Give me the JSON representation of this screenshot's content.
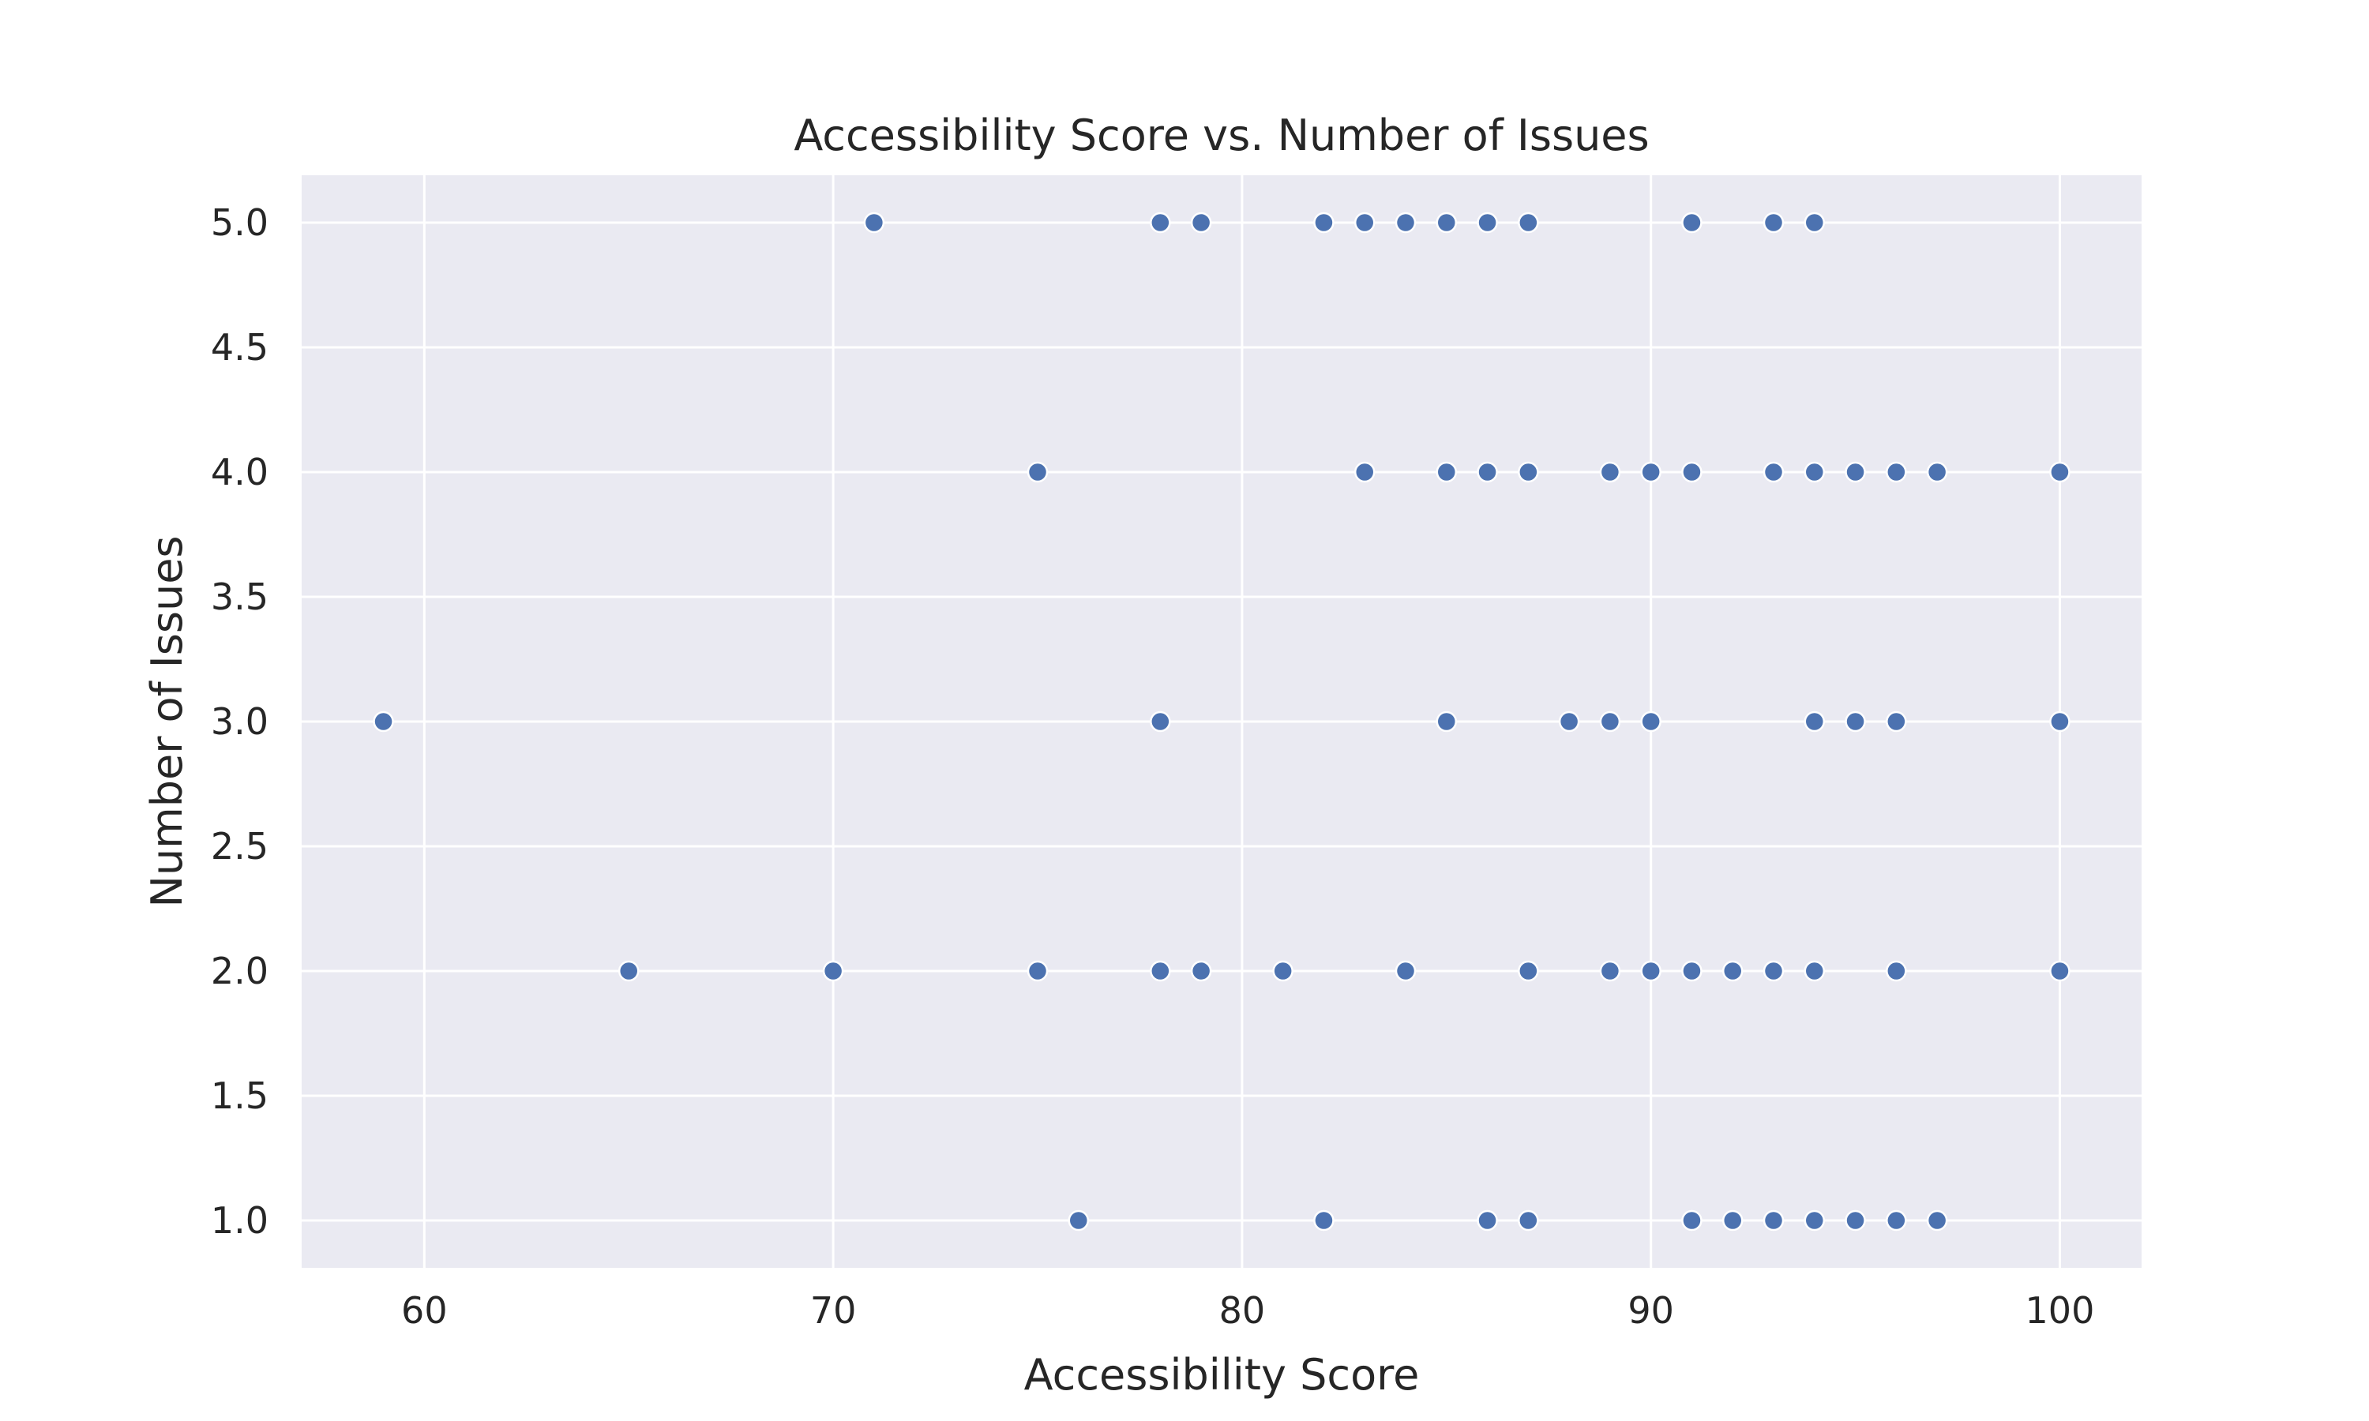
{
  "chart_data": {
    "type": "scatter",
    "title": "Accessibility Score vs. Number of Issues",
    "xlabel": "Accessibility Score",
    "ylabel": "Number of Issues",
    "xlim": [
      57,
      102
    ],
    "ylim": [
      0.81,
      5.19
    ],
    "xticks": [
      60,
      70,
      80,
      90,
      100
    ],
    "yticks": [
      1.0,
      1.5,
      2.0,
      2.5,
      3.0,
      3.5,
      4.0,
      4.5,
      5.0
    ],
    "grid": true,
    "colors": {
      "background": "#eaeaf2",
      "point": "#4c72b0",
      "grid": "#ffffff",
      "text": "#262626"
    },
    "points": [
      {
        "x": 71,
        "y": 5
      },
      {
        "x": 78,
        "y": 5
      },
      {
        "x": 79,
        "y": 5
      },
      {
        "x": 82,
        "y": 5
      },
      {
        "x": 83,
        "y": 5
      },
      {
        "x": 84,
        "y": 5
      },
      {
        "x": 85,
        "y": 5
      },
      {
        "x": 86,
        "y": 5
      },
      {
        "x": 87,
        "y": 5
      },
      {
        "x": 91,
        "y": 5
      },
      {
        "x": 93,
        "y": 5
      },
      {
        "x": 94,
        "y": 5
      },
      {
        "x": 75,
        "y": 4
      },
      {
        "x": 83,
        "y": 4
      },
      {
        "x": 85,
        "y": 4
      },
      {
        "x": 86,
        "y": 4
      },
      {
        "x": 87,
        "y": 4
      },
      {
        "x": 89,
        "y": 4
      },
      {
        "x": 90,
        "y": 4
      },
      {
        "x": 91,
        "y": 4
      },
      {
        "x": 93,
        "y": 4
      },
      {
        "x": 94,
        "y": 4
      },
      {
        "x": 95,
        "y": 4
      },
      {
        "x": 96,
        "y": 4
      },
      {
        "x": 97,
        "y": 4
      },
      {
        "x": 100,
        "y": 4
      },
      {
        "x": 59,
        "y": 3
      },
      {
        "x": 78,
        "y": 3
      },
      {
        "x": 85,
        "y": 3
      },
      {
        "x": 88,
        "y": 3
      },
      {
        "x": 89,
        "y": 3
      },
      {
        "x": 90,
        "y": 3
      },
      {
        "x": 94,
        "y": 3
      },
      {
        "x": 95,
        "y": 3
      },
      {
        "x": 96,
        "y": 3
      },
      {
        "x": 100,
        "y": 3
      },
      {
        "x": 65,
        "y": 2
      },
      {
        "x": 70,
        "y": 2
      },
      {
        "x": 75,
        "y": 2
      },
      {
        "x": 78,
        "y": 2
      },
      {
        "x": 79,
        "y": 2
      },
      {
        "x": 81,
        "y": 2
      },
      {
        "x": 84,
        "y": 2
      },
      {
        "x": 87,
        "y": 2
      },
      {
        "x": 89,
        "y": 2
      },
      {
        "x": 90,
        "y": 2
      },
      {
        "x": 91,
        "y": 2
      },
      {
        "x": 92,
        "y": 2
      },
      {
        "x": 93,
        "y": 2
      },
      {
        "x": 94,
        "y": 2
      },
      {
        "x": 96,
        "y": 2
      },
      {
        "x": 100,
        "y": 2
      },
      {
        "x": 76,
        "y": 1
      },
      {
        "x": 82,
        "y": 1
      },
      {
        "x": 86,
        "y": 1
      },
      {
        "x": 87,
        "y": 1
      },
      {
        "x": 91,
        "y": 1
      },
      {
        "x": 92,
        "y": 1
      },
      {
        "x": 93,
        "y": 1
      },
      {
        "x": 94,
        "y": 1
      },
      {
        "x": 95,
        "y": 1
      },
      {
        "x": 96,
        "y": 1
      },
      {
        "x": 97,
        "y": 1
      }
    ]
  }
}
